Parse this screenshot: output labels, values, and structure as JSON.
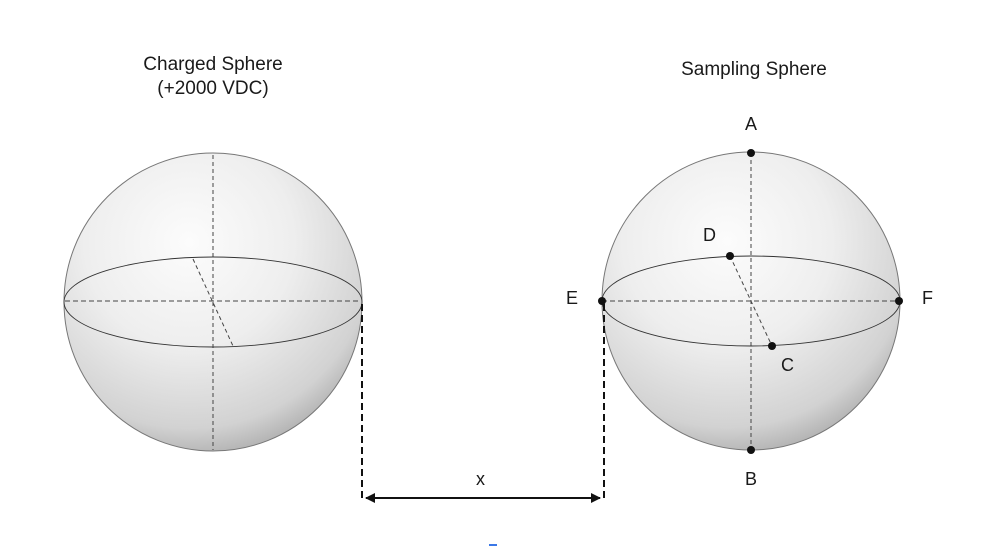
{
  "charged_sphere": {
    "title": "Charged Sphere",
    "voltage": "(+2000 VDC)"
  },
  "sampling_sphere": {
    "title": "Sampling Sphere",
    "points": {
      "a": "A",
      "b": "B",
      "c": "C",
      "d": "D",
      "e": "E",
      "f": "F"
    }
  },
  "distance": {
    "label": "x"
  },
  "colors": {
    "sphere_light": "#fbfbfb",
    "sphere_mid": "#e3e3e3",
    "sphere_dark": "#a9a9a9",
    "outline": "#555555",
    "ink": "#111111"
  }
}
